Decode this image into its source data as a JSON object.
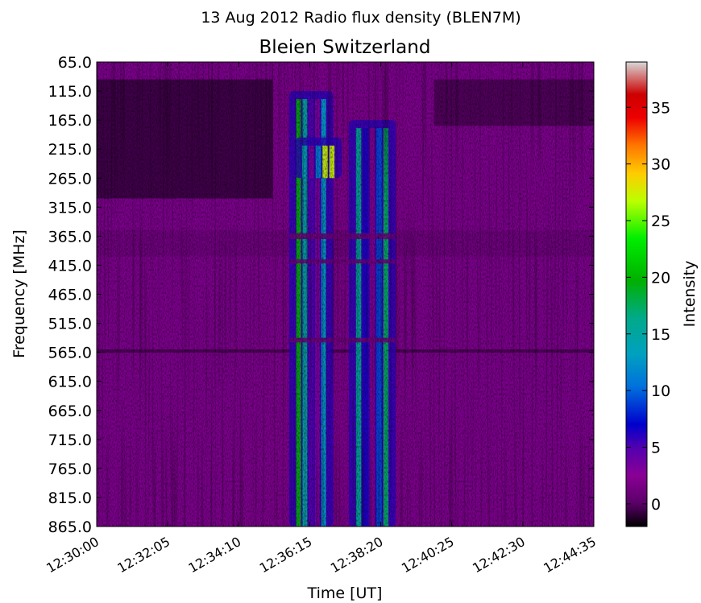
{
  "chart_data": {
    "type": "heatmap",
    "title": "13 Aug 2012 Radio flux density (BLEN7M)",
    "subtitle": "Bleien Switzerland",
    "xlabel": "Time [UT]",
    "ylabel": "Frequency [MHz]",
    "colorbar_label": "Intensity",
    "x_ticks": [
      "12:30:00",
      "12:32:05",
      "12:34:10",
      "12:36:15",
      "12:38:20",
      "12:40:25",
      "12:42:30",
      "12:44:35"
    ],
    "y_ticks": [
      "65.0",
      "115.0",
      "165.0",
      "215.0",
      "265.0",
      "315.0",
      "365.0",
      "415.0",
      "465.0",
      "515.0",
      "565.0",
      "615.0",
      "665.0",
      "715.0",
      "765.0",
      "815.0",
      "865.0"
    ],
    "colorbar_ticks": [
      "0",
      "5",
      "10",
      "15",
      "20",
      "25",
      "30",
      "35"
    ],
    "colorbar_range": [
      -2,
      39
    ],
    "colormap": "spectral",
    "ylim": [
      865.0,
      65.0
    ],
    "xlim": [
      "12:30:00",
      "12:44:35"
    ],
    "background_level": 2,
    "features": [
      {
        "description": "burst lane A",
        "time_start": "12:35:50",
        "time_end": "12:36:45",
        "freq_start": 115,
        "freq_end": 865,
        "peak_intensity": 20
      },
      {
        "description": "burst lane B",
        "time_start": "12:37:35",
        "time_end": "12:38:35",
        "freq_start": 165,
        "freq_end": 865,
        "peak_intensity": 18
      },
      {
        "description": "peak patch",
        "time_start": "12:36:00",
        "time_end": "12:37:00",
        "freq_start": 195,
        "freq_end": 265,
        "peak_intensity": 30
      }
    ]
  }
}
